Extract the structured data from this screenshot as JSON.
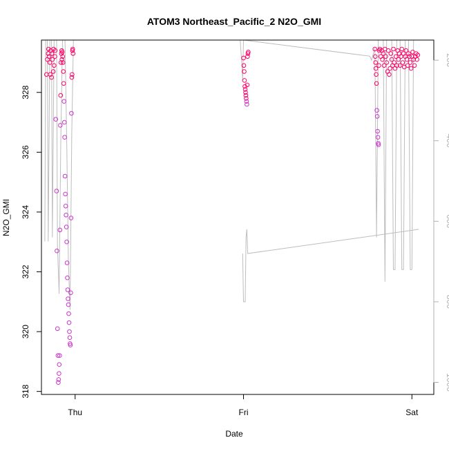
{
  "chart_data": {
    "type": "scatter",
    "title": "ATOM3 Northeast_Pacific_2 N2O_GMI",
    "xlabel": "Date",
    "ylabel": "N2O_GMI",
    "x_ticks": [
      {
        "label": "Thu",
        "value": 0.0
      },
      {
        "label": "Fri",
        "value": 1.0
      },
      {
        "label": "Sat",
        "value": 2.0
      }
    ],
    "xlim": [
      -0.2,
      2.13
    ],
    "y_ticks": [
      318,
      320,
      322,
      324,
      326,
      328
    ],
    "ylim": [
      317.9,
      329.75
    ],
    "y2_ticks": [
      200,
      400,
      600,
      800,
      1000
    ],
    "y2lim": [
      1030,
      150
    ],
    "colors": {
      "low": "#cc33cc",
      "high": "#ff0066",
      "trace": "#bdbdbd",
      "y2_axis": "#b0b0b0"
    },
    "series": [
      {
        "points": [
          [
            -0.17,
            328.6
          ],
          [
            -0.165,
            329.1
          ],
          [
            -0.16,
            329.3
          ],
          [
            -0.158,
            329.45
          ],
          [
            -0.155,
            329.2
          ],
          [
            -0.15,
            329.0
          ],
          [
            -0.148,
            328.6
          ],
          [
            -0.145,
            329.4
          ],
          [
            -0.14,
            328.5
          ],
          [
            -0.138,
            329.3
          ],
          [
            -0.135,
            329.1
          ],
          [
            -0.13,
            328.7
          ],
          [
            -0.128,
            329.45
          ],
          [
            -0.125,
            328.9
          ],
          [
            -0.12,
            329.2
          ],
          [
            -0.118,
            329.4
          ],
          [
            -0.115,
            327.1
          ],
          [
            -0.11,
            324.7
          ],
          [
            -0.108,
            322.7
          ],
          [
            -0.105,
            320.1
          ],
          [
            -0.102,
            319.2
          ],
          [
            -0.1,
            318.3
          ],
          [
            -0.098,
            318.4
          ],
          [
            -0.096,
            318.6
          ],
          [
            -0.094,
            318.9
          ],
          [
            -0.092,
            319.2
          ],
          [
            -0.09,
            323.4
          ],
          [
            -0.088,
            326.9
          ],
          [
            -0.086,
            327.9
          ],
          [
            -0.084,
            329.0
          ],
          [
            -0.082,
            329.3
          ],
          [
            -0.08,
            329.4
          ],
          [
            -0.078,
            329.1
          ],
          [
            -0.076,
            329.35
          ],
          [
            -0.074,
            329.2
          ],
          [
            -0.072,
            329.0
          ],
          [
            -0.07,
            328.7
          ],
          [
            -0.068,
            328.3
          ],
          [
            -0.066,
            327.7
          ],
          [
            -0.064,
            327.0
          ],
          [
            -0.062,
            326.5
          ],
          [
            -0.06,
            325.2
          ],
          [
            -0.058,
            324.6
          ],
          [
            -0.056,
            324.2
          ],
          [
            -0.054,
            323.9
          ],
          [
            -0.052,
            323.5
          ],
          [
            -0.05,
            323.0
          ],
          [
            -0.048,
            322.3
          ],
          [
            -0.046,
            321.8
          ],
          [
            -0.044,
            321.4
          ],
          [
            -0.042,
            321.1
          ],
          [
            -0.04,
            320.9
          ],
          [
            -0.038,
            320.6
          ],
          [
            -0.036,
            320.3
          ],
          [
            -0.034,
            320.0
          ],
          [
            -0.032,
            319.8
          ],
          [
            -0.03,
            319.6
          ],
          [
            -0.028,
            319.55
          ],
          [
            -0.026,
            321.3
          ],
          [
            -0.024,
            323.8
          ],
          [
            -0.022,
            327.3
          ],
          [
            -0.02,
            328.5
          ],
          [
            -0.018,
            328.6
          ],
          [
            -0.016,
            329.4
          ],
          [
            -0.014,
            329.45
          ],
          [
            -0.012,
            329.3
          ]
        ]
      },
      {
        "points": [
          [
            1.0,
            329.15
          ],
          [
            1.002,
            328.9
          ],
          [
            1.004,
            328.7
          ],
          [
            1.006,
            328.4
          ],
          [
            1.008,
            328.2
          ],
          [
            1.01,
            328.1
          ],
          [
            1.012,
            328.0
          ],
          [
            1.014,
            327.9
          ],
          [
            1.016,
            327.8
          ],
          [
            1.018,
            327.7
          ],
          [
            1.02,
            327.6
          ],
          [
            1.022,
            328.25
          ],
          [
            1.024,
            329.2
          ],
          [
            1.026,
            329.3
          ],
          [
            1.028,
            329.35
          ]
        ]
      },
      {
        "points": [
          [
            1.78,
            329.45
          ],
          [
            1.782,
            329.2
          ],
          [
            1.784,
            329.0
          ],
          [
            1.786,
            328.8
          ],
          [
            1.788,
            328.6
          ],
          [
            1.79,
            328.3
          ],
          [
            1.792,
            327.4
          ],
          [
            1.794,
            327.2
          ],
          [
            1.796,
            326.7
          ],
          [
            1.798,
            326.5
          ],
          [
            1.8,
            326.3
          ],
          [
            1.802,
            326.25
          ],
          [
            1.804,
            328.9
          ],
          [
            1.806,
            329.4
          ],
          [
            1.81,
            329.45
          ],
          [
            1.815,
            329.2
          ],
          [
            1.82,
            329.4
          ],
          [
            1.825,
            329.1
          ],
          [
            1.83,
            329.3
          ],
          [
            1.835,
            328.9
          ],
          [
            1.84,
            329.45
          ],
          [
            1.845,
            329.2
          ],
          [
            1.85,
            329.0
          ],
          [
            1.855,
            328.7
          ],
          [
            1.86,
            329.4
          ],
          [
            1.865,
            328.6
          ],
          [
            1.87,
            328.8
          ],
          [
            1.875,
            329.3
          ],
          [
            1.88,
            329.1
          ],
          [
            1.885,
            328.9
          ],
          [
            1.89,
            329.45
          ],
          [
            1.895,
            329.0
          ],
          [
            1.9,
            328.8
          ],
          [
            1.905,
            329.2
          ],
          [
            1.91,
            328.9
          ],
          [
            1.915,
            329.4
          ],
          [
            1.92,
            329.1
          ],
          [
            1.925,
            329.3
          ],
          [
            1.93,
            328.9
          ],
          [
            1.935,
            329.2
          ],
          [
            1.94,
            329.45
          ],
          [
            1.945,
            329.0
          ],
          [
            1.95,
            329.3
          ],
          [
            1.955,
            328.85
          ],
          [
            1.96,
            329.2
          ],
          [
            1.965,
            329.4
          ],
          [
            1.97,
            329.1
          ],
          [
            1.975,
            328.9
          ],
          [
            1.98,
            329.3
          ],
          [
            1.985,
            329.2
          ],
          [
            1.99,
            329.0
          ],
          [
            1.995,
            328.8
          ],
          [
            2.0,
            329.2
          ],
          [
            2.005,
            329.35
          ],
          [
            2.01,
            329.1
          ],
          [
            2.015,
            328.9
          ],
          [
            2.02,
            329.2
          ],
          [
            2.025,
            329.3
          ],
          [
            2.03,
            329.1
          ],
          [
            2.035,
            329.25
          ]
        ]
      }
    ],
    "trace_y2": [
      [
        -0.18,
        650
      ],
      [
        -0.175,
        150
      ],
      [
        -0.165,
        150
      ],
      [
        -0.16,
        650
      ],
      [
        -0.15,
        150
      ],
      [
        -0.14,
        150
      ],
      [
        -0.135,
        640
      ],
      [
        -0.125,
        150
      ],
      [
        -0.11,
        150
      ],
      [
        -0.105,
        660
      ],
      [
        -0.095,
        780
      ],
      [
        -0.085,
        400
      ],
      [
        -0.075,
        150
      ],
      [
        -0.06,
        150
      ],
      [
        -0.05,
        400
      ],
      [
        -0.04,
        700
      ],
      [
        -0.03,
        820
      ],
      [
        -0.02,
        380
      ],
      [
        -0.01,
        150
      ],
      [
        0.6,
        150
      ],
      [
        0.98,
        150
      ],
      [
        0.99,
        210
      ],
      [
        0.995,
        250
      ],
      [
        1.0,
        150
      ],
      [
        1.75,
        190
      ],
      [
        1.76,
        200
      ],
      [
        1.78,
        170
      ],
      [
        1.79,
        640
      ],
      [
        1.8,
        150
      ],
      [
        1.83,
        150
      ],
      [
        1.84,
        750
      ],
      [
        1.85,
        150
      ],
      [
        1.88,
        150
      ],
      [
        1.89,
        720
      ],
      [
        1.9,
        720
      ],
      [
        1.91,
        150
      ],
      [
        1.93,
        150
      ],
      [
        1.94,
        720
      ],
      [
        1.95,
        720
      ],
      [
        1.96,
        150
      ],
      [
        1.98,
        150
      ],
      [
        1.99,
        720
      ],
      [
        2.0,
        720
      ],
      [
        2.01,
        150
      ],
      [
        2.02,
        150
      ],
      [
        2.03,
        150
      ]
    ],
    "trace_y2_fri": [
      [
        0.995,
        680
      ],
      [
        1.0,
        800
      ],
      [
        1.01,
        800
      ],
      [
        1.015,
        640
      ],
      [
        1.02,
        620
      ],
      [
        1.025,
        680
      ],
      [
        2.04,
        620
      ]
    ]
  }
}
